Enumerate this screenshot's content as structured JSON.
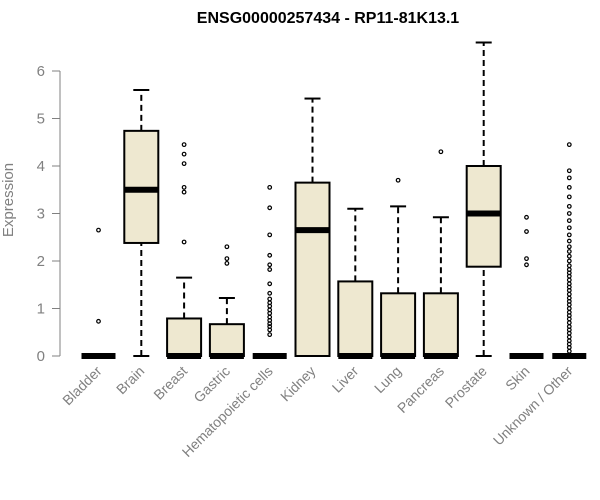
{
  "chart_data": {
    "type": "boxplot",
    "title": "ENSG00000257434 - RP11-81K13.1",
    "ylabel": "Expression",
    "xlabel": "",
    "ylim": [
      0,
      6.6
    ],
    "yticks": [
      "0",
      "1",
      "2",
      "3",
      "4",
      "5",
      "6"
    ],
    "grid": false,
    "colors": {
      "box_fill": "#EEE8D0",
      "stroke": "#000000",
      "axis_text": "#808080"
    },
    "categories": [
      "Bladder",
      "Brain",
      "Breast",
      "Gastric",
      "Hematopoietic cells",
      "Kidney",
      "Liver",
      "Lung",
      "Pancreas",
      "Prostate",
      "Skin",
      "Unknown / Other"
    ],
    "boxes": [
      {
        "q1": 0,
        "median": 0,
        "q3": 0,
        "whisker_low": 0,
        "whisker_high": 0,
        "outliers": [
          0.73,
          2.65
        ]
      },
      {
        "q1": 2.38,
        "median": 3.5,
        "q3": 4.74,
        "whisker_low": 0,
        "whisker_high": 5.6,
        "outliers": []
      },
      {
        "q1": 0,
        "median": 0,
        "q3": 0.79,
        "whisker_low": 0,
        "whisker_high": 1.65,
        "outliers": [
          2.4,
          3.45,
          3.55,
          4.05,
          4.25,
          4.45
        ]
      },
      {
        "q1": 0,
        "median": 0,
        "q3": 0.67,
        "whisker_low": 0,
        "whisker_high": 1.22,
        "outliers": [
          1.95,
          2.05,
          2.3
        ]
      },
      {
        "q1": 0,
        "median": 0,
        "q3": 0,
        "whisker_low": 0,
        "whisker_high": 0,
        "outliers": [
          0.45,
          0.55,
          0.62,
          0.68,
          0.75,
          0.82,
          0.9,
          0.97,
          1.05,
          1.12,
          1.2,
          1.32,
          1.52,
          1.82,
          1.92,
          2.12,
          2.55,
          3.12,
          3.55
        ]
      },
      {
        "q1": 0,
        "median": 2.65,
        "q3": 3.65,
        "whisker_low": 0,
        "whisker_high": 5.42,
        "outliers": []
      },
      {
        "q1": 0,
        "median": 0,
        "q3": 1.57,
        "whisker_low": 0,
        "whisker_high": 3.1,
        "outliers": []
      },
      {
        "q1": 0,
        "median": 0,
        "q3": 1.32,
        "whisker_low": 0,
        "whisker_high": 3.15,
        "outliers": [
          3.7
        ]
      },
      {
        "q1": 0,
        "median": 0,
        "q3": 1.32,
        "whisker_low": 0,
        "whisker_high": 2.92,
        "outliers": [
          4.3
        ]
      },
      {
        "q1": 1.88,
        "median": 3.0,
        "q3": 4.0,
        "whisker_low": 0,
        "whisker_high": 6.6,
        "outliers": []
      },
      {
        "q1": 0,
        "median": 0,
        "q3": 0,
        "whisker_low": 0,
        "whisker_high": 0,
        "outliers": [
          1.92,
          2.05,
          2.62,
          2.92
        ]
      },
      {
        "q1": 0,
        "median": 0,
        "q3": 0,
        "whisker_low": 0,
        "whisker_high": 0,
        "outliers": [
          0.1,
          0.18,
          0.25,
          0.32,
          0.4,
          0.48,
          0.55,
          0.62,
          0.7,
          0.78,
          0.85,
          0.92,
          1.0,
          1.08,
          1.15,
          1.22,
          1.3,
          1.38,
          1.45,
          1.52,
          1.6,
          1.68,
          1.75,
          1.82,
          1.9,
          2.0,
          2.1,
          2.2,
          2.3,
          2.42,
          2.55,
          2.7,
          2.85,
          3.0,
          3.15,
          3.35,
          3.55,
          3.75,
          3.9,
          4.45
        ]
      }
    ]
  }
}
